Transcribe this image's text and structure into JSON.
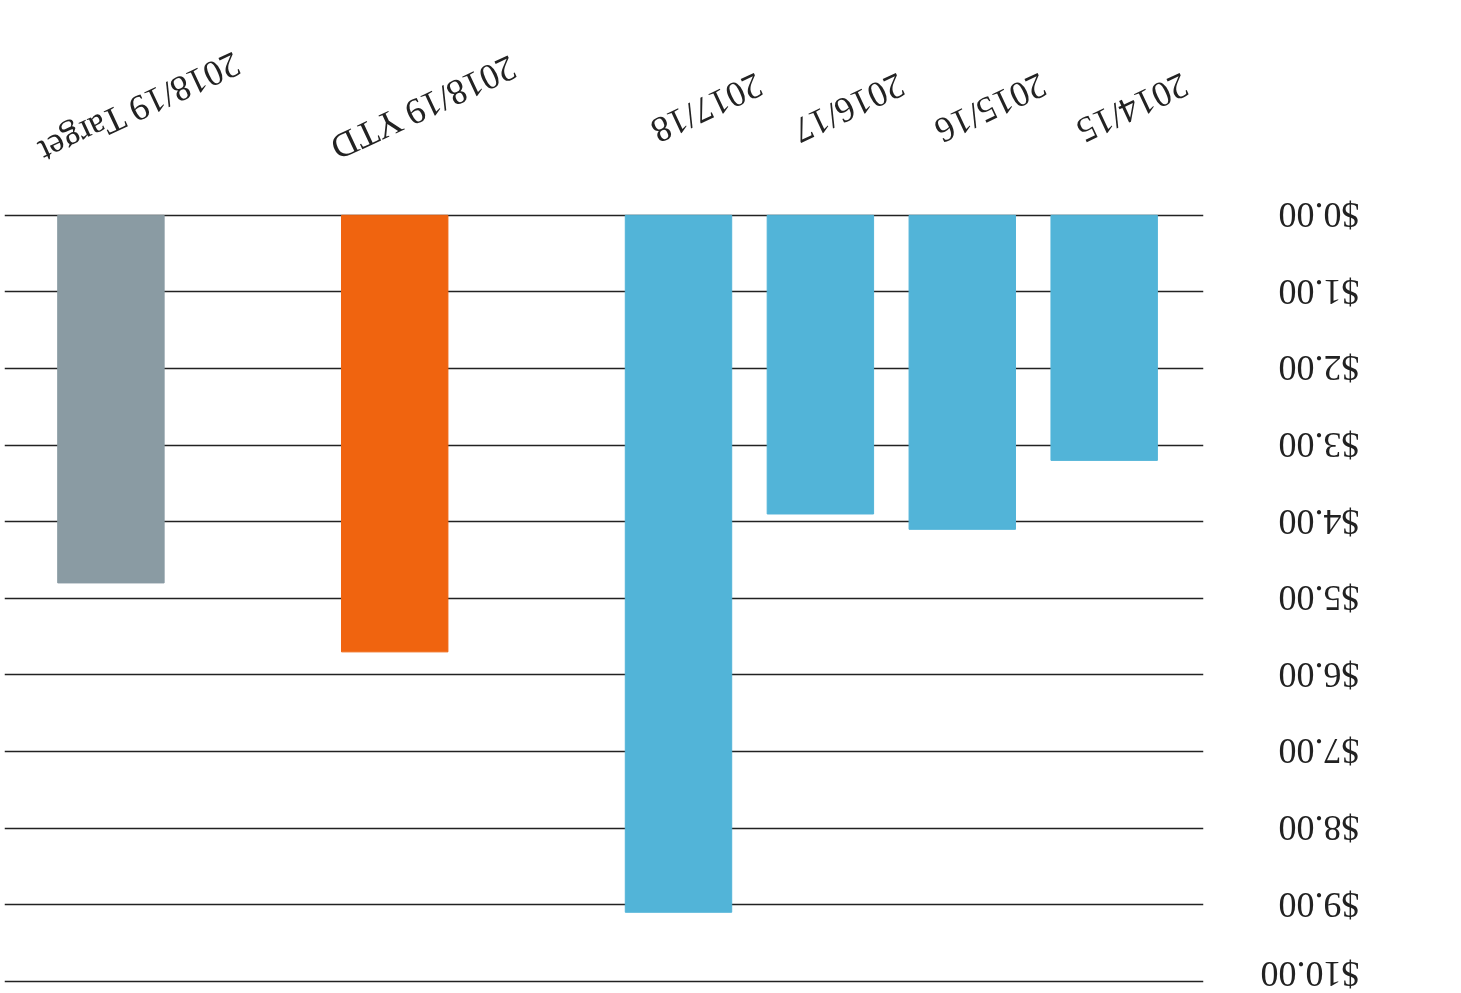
{
  "chart_data": {
    "type": "bar",
    "categories": [
      "2018/19 Target",
      null,
      "2018/19 YTD",
      null,
      "2017/18",
      "2016/17",
      "2015/16",
      "2014/15"
    ],
    "values": [
      4.8,
      null,
      5.7,
      null,
      9.1,
      3.9,
      4.1,
      3.2
    ],
    "colors": [
      "#8a9ba3",
      "#ffffff",
      "#f0640f",
      "#ffffff",
      "#52b4d8",
      "#52b4d8",
      "#52b4d8",
      "#52b4d8"
    ],
    "ylim": [
      10,
      0
    ],
    "yticks": [
      {
        "value": 0,
        "label": "$0.00"
      },
      {
        "value": 1,
        "label": "$1.00"
      },
      {
        "value": 2,
        "label": "$2.00"
      },
      {
        "value": 3,
        "label": "$3.00"
      },
      {
        "value": 4,
        "label": "$4.00"
      },
      {
        "value": 5,
        "label": "$5.00"
      },
      {
        "value": 6,
        "label": "$6.00"
      },
      {
        "value": 7,
        "label": "$7.00"
      },
      {
        "value": 8,
        "label": "$8.00"
      },
      {
        "value": 9,
        "label": "$9.00"
      },
      {
        "value": 10,
        "label": "$10.00"
      }
    ],
    "grid": "y"
  }
}
